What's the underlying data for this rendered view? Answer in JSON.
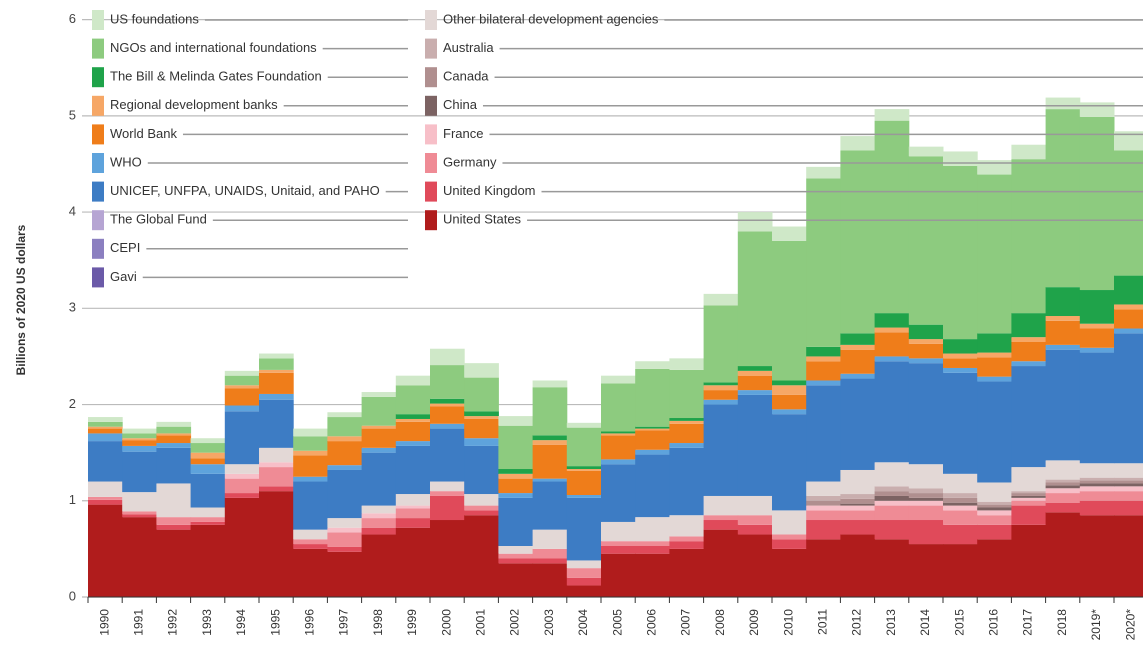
{
  "chart_data": {
    "type": "stacked_bar",
    "y_label": "Billions of 2020 US dollars",
    "categories": [
      "1990",
      "1991",
      "1992",
      "1993",
      "1994",
      "1995",
      "1996",
      "1997",
      "1998",
      "1999",
      "2000",
      "2001",
      "2002",
      "2003",
      "2004",
      "2005",
      "2006",
      "2007",
      "2008",
      "2009",
      "2010",
      "2011",
      "2012",
      "2013",
      "2014",
      "2015",
      "2016",
      "2017",
      "2018",
      "2019*",
      "2020*"
    ],
    "ylim": [
      0,
      6.1
    ],
    "yticks": [
      0,
      1,
      2,
      3,
      4,
      5,
      6
    ],
    "grid": true,
    "series": [
      {
        "name": "United States",
        "color": "#b01c1c",
        "values": [
          0.96,
          0.83,
          0.7,
          0.75,
          1.03,
          1.1,
          0.5,
          0.47,
          0.65,
          0.72,
          0.8,
          0.85,
          0.35,
          0.35,
          0.12,
          0.45,
          0.45,
          0.5,
          0.7,
          0.65,
          0.5,
          0.6,
          0.65,
          0.6,
          0.55,
          0.55,
          0.6,
          0.75,
          0.88,
          0.85,
          0.85
        ]
      },
      {
        "name": "United Kingdom",
        "color": "#e04a5a",
        "values": [
          0.05,
          0.03,
          0.05,
          0.03,
          0.05,
          0.05,
          0.05,
          0.05,
          0.07,
          0.1,
          0.25,
          0.05,
          0.05,
          0.05,
          0.08,
          0.08,
          0.08,
          0.08,
          0.1,
          0.1,
          0.1,
          0.2,
          0.15,
          0.2,
          0.25,
          0.2,
          0.15,
          0.2,
          0.1,
          0.15,
          0.15
        ]
      },
      {
        "name": "Germany",
        "color": "#ef8b95",
        "values": [
          0.03,
          0.03,
          0.08,
          0.05,
          0.15,
          0.2,
          0.05,
          0.15,
          0.1,
          0.1,
          0.05,
          0.05,
          0.05,
          0.1,
          0.1,
          0.05,
          0.05,
          0.05,
          0.05,
          0.1,
          0.05,
          0.1,
          0.1,
          0.15,
          0.15,
          0.15,
          0.1,
          0.05,
          0.1,
          0.1,
          0.1
        ]
      },
      {
        "name": "France",
        "color": "#f7bfc8",
        "values": [
          0,
          0,
          0,
          0,
          0.05,
          0.05,
          0,
          0.05,
          0.05,
          0.03,
          0,
          0,
          0,
          0,
          0,
          0,
          0,
          0,
          0,
          0,
          0,
          0.05,
          0.05,
          0.05,
          0.05,
          0.05,
          0.05,
          0.03,
          0.05,
          0.05,
          0.05
        ]
      },
      {
        "name": "China",
        "color": "#7c6363",
        "values": [
          0,
          0,
          0,
          0,
          0,
          0,
          0,
          0,
          0,
          0,
          0,
          0,
          0,
          0,
          0,
          0,
          0,
          0,
          0,
          0,
          0,
          0,
          0.02,
          0.05,
          0.03,
          0.03,
          0.03,
          0.02,
          0.03,
          0.03,
          0.03
        ]
      },
      {
        "name": "Canada",
        "color": "#b08f8f",
        "values": [
          0,
          0,
          0,
          0,
          0,
          0,
          0,
          0,
          0,
          0,
          0,
          0,
          0,
          0,
          0,
          0,
          0,
          0,
          0,
          0,
          0,
          0.05,
          0.05,
          0.05,
          0.05,
          0.05,
          0.03,
          0.03,
          0.03,
          0.03,
          0.03
        ]
      },
      {
        "name": "Australia",
        "color": "#c9aeae",
        "values": [
          0,
          0,
          0,
          0,
          0,
          0,
          0,
          0,
          0,
          0,
          0,
          0,
          0,
          0,
          0,
          0,
          0,
          0,
          0,
          0,
          0,
          0.05,
          0.05,
          0.05,
          0.05,
          0.05,
          0.03,
          0.02,
          0.03,
          0.03,
          0.03
        ]
      },
      {
        "name": "Other bilateral development agencies",
        "color": "#e3d8d6",
        "values": [
          0.16,
          0.2,
          0.35,
          0.1,
          0.1,
          0.15,
          0.1,
          0.1,
          0.08,
          0.12,
          0.1,
          0.12,
          0.08,
          0.2,
          0.08,
          0.2,
          0.25,
          0.22,
          0.2,
          0.2,
          0.25,
          0.15,
          0.25,
          0.25,
          0.25,
          0.2,
          0.2,
          0.25,
          0.2,
          0.15,
          0.15
        ]
      },
      {
        "name": "Gavi",
        "color": "#6b5aa8",
        "values": [
          0,
          0,
          0,
          0,
          0,
          0,
          0,
          0,
          0,
          0,
          0,
          0,
          0,
          0,
          0,
          0,
          0,
          0,
          0,
          0,
          0,
          0,
          0,
          0,
          0,
          0,
          0,
          0,
          0,
          0,
          0
        ]
      },
      {
        "name": "CEPI",
        "color": "#8b7fc0",
        "values": [
          0,
          0,
          0,
          0,
          0,
          0,
          0,
          0,
          0,
          0,
          0,
          0,
          0,
          0,
          0,
          0,
          0,
          0,
          0,
          0,
          0,
          0,
          0,
          0,
          0,
          0,
          0,
          0,
          0,
          0,
          0
        ]
      },
      {
        "name": "The Global Fund",
        "color": "#b6a5d3",
        "values": [
          0,
          0,
          0,
          0,
          0,
          0,
          0,
          0,
          0,
          0,
          0,
          0,
          0,
          0,
          0,
          0,
          0,
          0,
          0,
          0,
          0,
          0,
          0,
          0,
          0,
          0,
          0,
          0,
          0,
          0,
          0
        ]
      },
      {
        "name": "UNICEF, UNFPA, UNAIDS, Unitaid, and PAHO",
        "color": "#3d7cc4",
        "values": [
          0.42,
          0.42,
          0.37,
          0.35,
          0.55,
          0.5,
          0.5,
          0.5,
          0.55,
          0.5,
          0.55,
          0.5,
          0.5,
          0.5,
          0.65,
          0.6,
          0.65,
          0.7,
          0.95,
          1.05,
          1.0,
          1.0,
          0.95,
          1.05,
          1.05,
          1.05,
          1.05,
          1.05,
          1.15,
          1.15,
          1.35
        ]
      },
      {
        "name": "WHO",
        "color": "#5ea3dc",
        "values": [
          0.08,
          0.06,
          0.05,
          0.1,
          0.06,
          0.06,
          0.05,
          0.05,
          0.05,
          0.05,
          0.05,
          0.08,
          0.05,
          0.03,
          0.03,
          0.05,
          0.05,
          0.05,
          0.05,
          0.05,
          0.05,
          0.05,
          0.05,
          0.05,
          0.05,
          0.05,
          0.05,
          0.05,
          0.05,
          0.05,
          0.05
        ]
      },
      {
        "name": "World Bank",
        "color": "#ef7d1a",
        "values": [
          0.05,
          0.06,
          0.08,
          0.06,
          0.18,
          0.22,
          0.22,
          0.25,
          0.2,
          0.2,
          0.18,
          0.2,
          0.15,
          0.35,
          0.25,
          0.25,
          0.2,
          0.2,
          0.1,
          0.15,
          0.15,
          0.2,
          0.25,
          0.25,
          0.15,
          0.1,
          0.2,
          0.2,
          0.25,
          0.2,
          0.2
        ]
      },
      {
        "name": "Regional development banks",
        "color": "#f6a766",
        "values": [
          0.02,
          0.02,
          0.02,
          0.06,
          0.03,
          0.03,
          0.05,
          0.05,
          0.03,
          0.03,
          0.03,
          0.03,
          0.05,
          0.05,
          0.02,
          0.02,
          0.02,
          0.03,
          0.05,
          0.05,
          0.1,
          0.05,
          0.05,
          0.05,
          0.05,
          0.05,
          0.05,
          0.05,
          0.05,
          0.05,
          0.05
        ]
      },
      {
        "name": "The Bill & Melinda Gates Foundation",
        "color": "#1fa34a",
        "values": [
          0,
          0,
          0,
          0,
          0,
          0,
          0,
          0,
          0,
          0.05,
          0.05,
          0.05,
          0.05,
          0.05,
          0.03,
          0.02,
          0.02,
          0.03,
          0.03,
          0.05,
          0.05,
          0.1,
          0.12,
          0.15,
          0.15,
          0.15,
          0.2,
          0.25,
          0.3,
          0.35,
          0.3
        ]
      },
      {
        "name": "NGOs and international foundations",
        "color": "#8dcb7f",
        "values": [
          0.05,
          0.05,
          0.07,
          0.1,
          0.1,
          0.12,
          0.15,
          0.2,
          0.3,
          0.3,
          0.35,
          0.35,
          0.45,
          0.5,
          0.4,
          0.5,
          0.6,
          0.5,
          0.8,
          1.4,
          1.45,
          1.75,
          1.9,
          2.0,
          1.75,
          1.8,
          1.65,
          1.6,
          1.85,
          1.8,
          1.3
        ]
      },
      {
        "name": "US foundations",
        "color": "#cfe8c8",
        "values": [
          0.05,
          0.05,
          0.05,
          0.05,
          0.05,
          0.05,
          0.08,
          0.05,
          0.05,
          0.1,
          0.17,
          0.15,
          0.1,
          0.07,
          0.05,
          0.08,
          0.08,
          0.12,
          0.12,
          0.2,
          0.15,
          0.12,
          0.15,
          0.12,
          0.1,
          0.15,
          0.15,
          0.15,
          0.12,
          0.15,
          0.2
        ]
      }
    ]
  }
}
